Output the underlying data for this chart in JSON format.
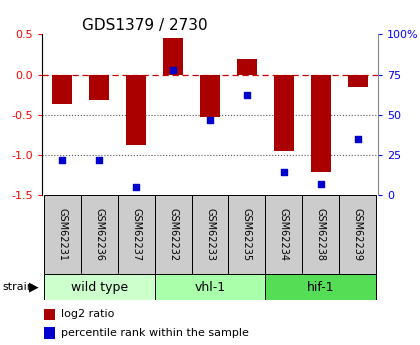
{
  "title": "GDS1379 / 2730",
  "samples": [
    "GSM62231",
    "GSM62236",
    "GSM62237",
    "GSM62232",
    "GSM62233",
    "GSM62235",
    "GSM62234",
    "GSM62238",
    "GSM62239"
  ],
  "log2_ratio": [
    -0.37,
    -0.32,
    -0.88,
    0.46,
    -0.53,
    0.2,
    -0.95,
    -1.22,
    -0.15
  ],
  "percentile": [
    22,
    22,
    5,
    78,
    47,
    62,
    14,
    7,
    35
  ],
  "groups": [
    {
      "label": "wild type",
      "start": 0,
      "end": 3,
      "color": "#ccffcc"
    },
    {
      "label": "vhl-1",
      "start": 3,
      "end": 6,
      "color": "#aaffaa"
    },
    {
      "label": "hif-1",
      "start": 6,
      "end": 9,
      "color": "#55dd55"
    }
  ],
  "bar_color": "#aa0000",
  "dot_color": "#0000cc",
  "ylim_left": [
    -1.5,
    0.5
  ],
  "ylim_right": [
    0,
    100
  ],
  "yticks_left": [
    -1.5,
    -1.0,
    -0.5,
    0.0,
    0.5
  ],
  "yticks_right": [
    0,
    25,
    50,
    75,
    100
  ],
  "hline_zero_color": "#cc0000",
  "dotted_hlines": [
    -0.5,
    -1.0
  ],
  "dotted_color": "#555555",
  "bar_width": 0.55,
  "sample_box_color": "#cccccc",
  "group_label_fontsize": 9,
  "sample_label_fontsize": 7,
  "title_fontsize": 11,
  "legend_red_label": "log2 ratio",
  "legend_blue_label": "percentile rank within the sample"
}
